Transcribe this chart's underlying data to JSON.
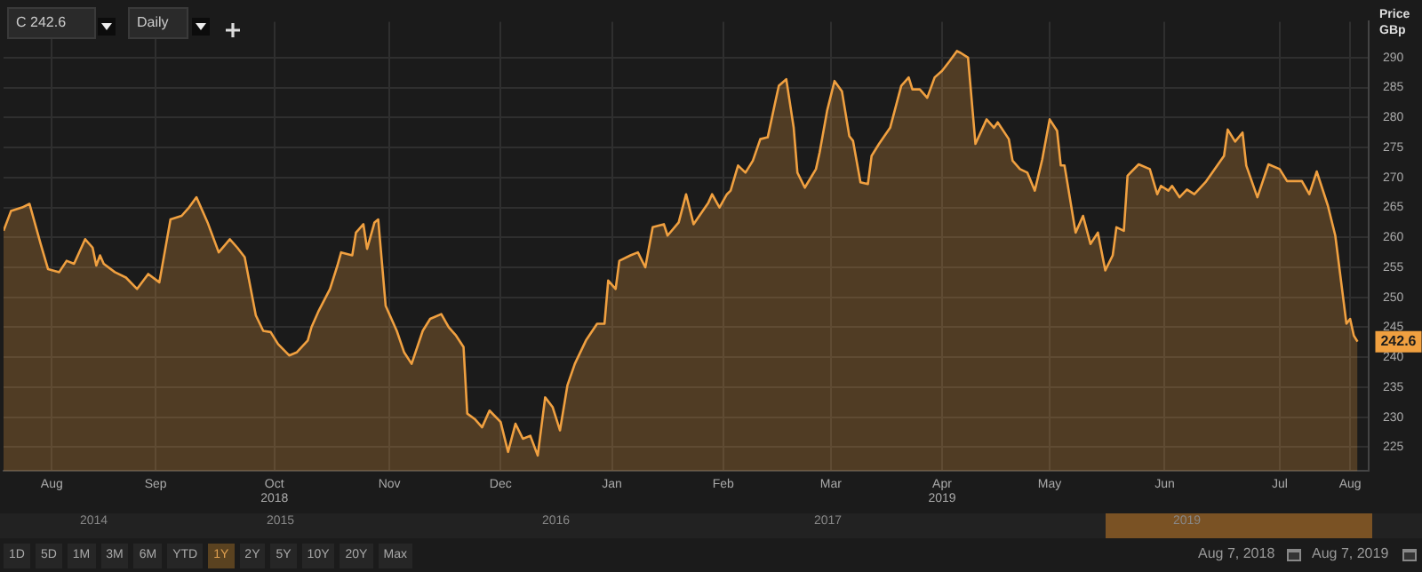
{
  "chart_data": {
    "type": "area",
    "ylabel": "Price GBp",
    "color": "#f0a040",
    "x": [
      "2018-08-07",
      "2018-08-09",
      "2018-08-12",
      "2018-08-14",
      "2018-08-17",
      "2018-08-19",
      "2018-08-22",
      "2018-08-24",
      "2018-08-26",
      "2018-08-29",
      "2018-08-31",
      "2018-09-01",
      "2018-09-02",
      "2018-09-03",
      "2018-09-06",
      "2018-09-09",
      "2018-09-12",
      "2018-09-15",
      "2018-09-18",
      "2018-09-21",
      "2018-09-24",
      "2018-09-26",
      "2018-09-28",
      "2018-10-01",
      "2018-10-04",
      "2018-10-07",
      "2018-10-09",
      "2018-10-11",
      "2018-10-14",
      "2018-10-16",
      "2018-10-18",
      "2018-10-20",
      "2018-10-23",
      "2018-10-25",
      "2018-10-28",
      "2018-10-29",
      "2018-10-31",
      "2018-11-03",
      "2018-11-05",
      "2018-11-06",
      "2018-11-09",
      "2018-11-10",
      "2018-11-12",
      "2018-11-13",
      "2018-11-15",
      "2018-11-16",
      "2018-11-18",
      "2018-11-21",
      "2018-11-23",
      "2018-11-25",
      "2018-11-28",
      "2018-11-30",
      "2018-12-03",
      "2018-12-05",
      "2018-12-07",
      "2018-12-09",
      "2018-12-10",
      "2018-12-12",
      "2018-12-14",
      "2018-12-16",
      "2018-12-19",
      "2018-12-21",
      "2018-12-23",
      "2018-12-25",
      "2018-12-27",
      "2018-12-29",
      "2018-12-31",
      "2019-01-02",
      "2019-01-04",
      "2019-01-06",
      "2019-01-08",
      "2019-01-11",
      "2019-01-14",
      "2019-01-16",
      "2019-01-17",
      "2019-01-19",
      "2019-01-20",
      "2019-01-23",
      "2019-01-25",
      "2019-01-27",
      "2019-01-29",
      "2019-02-01",
      "2019-02-02",
      "2019-02-05",
      "2019-02-07",
      "2019-02-09",
      "2019-02-13",
      "2019-02-14",
      "2019-02-16",
      "2019-02-18",
      "2019-02-19",
      "2019-02-21",
      "2019-02-23",
      "2019-02-25",
      "2019-02-27",
      "2019-03-01",
      "2019-03-03",
      "2019-03-04",
      "2019-03-06",
      "2019-03-08",
      "2019-03-09",
      "2019-03-11",
      "2019-03-14",
      "2019-03-15",
      "2019-03-17",
      "2019-03-19",
      "2019-03-21",
      "2019-03-23",
      "2019-03-24",
      "2019-03-26",
      "2019-03-28",
      "2019-03-29",
      "2019-03-31",
      "2019-04-03",
      "2019-04-06",
      "2019-04-08",
      "2019-04-09",
      "2019-04-11",
      "2019-04-13",
      "2019-04-15",
      "2019-04-17",
      "2019-04-19",
      "2019-04-21",
      "2019-04-22",
      "2019-04-24",
      "2019-04-26",
      "2019-04-29",
      "2019-05-01",
      "2019-05-02",
      "2019-05-05",
      "2019-05-06",
      "2019-05-08",
      "2019-05-10",
      "2019-05-12",
      "2019-05-14",
      "2019-05-16",
      "2019-05-18",
      "2019-05-19",
      "2019-05-20",
      "2019-05-23",
      "2019-05-25",
      "2019-05-27",
      "2019-05-29",
      "2019-05-31",
      "2019-06-02",
      "2019-06-03",
      "2019-06-05",
      "2019-06-06",
      "2019-06-09",
      "2019-06-12",
      "2019-06-14",
      "2019-06-15",
      "2019-06-17",
      "2019-06-18",
      "2019-06-20",
      "2019-06-22",
      "2019-06-24",
      "2019-06-27",
      "2019-07-02",
      "2019-07-03",
      "2019-07-05",
      "2019-07-07",
      "2019-07-08",
      "2019-07-11",
      "2019-07-14",
      "2019-07-17",
      "2019-07-19",
      "2019-07-23",
      "2019-07-25",
      "2019-07-27",
      "2019-07-30",
      "2019-08-01",
      "2019-08-03",
      "2019-08-04",
      "2019-08-05",
      "2019-08-06",
      "2019-08-07"
    ],
    "values": [
      261.1,
      264.4,
      265,
      265.6,
      258.9,
      254.7,
      254.2,
      256.1,
      255.6,
      259.7,
      258.3,
      255.3,
      257,
      255.6,
      254.2,
      253.3,
      251.4,
      253.9,
      252.5,
      263,
      263.6,
      265,
      266.7,
      262.5,
      257.5,
      259.7,
      258.3,
      256.7,
      247,
      244.4,
      244.2,
      242.2,
      240.3,
      240.8,
      242.8,
      245,
      247.8,
      251.4,
      255.3,
      257.5,
      257,
      260.8,
      262.2,
      258.1,
      262.5,
      263,
      248.6,
      244.4,
      240.8,
      238.9,
      244.4,
      246.4,
      247.2,
      245,
      243.6,
      241.7,
      230.6,
      229.7,
      228.3,
      231.1,
      229.2,
      224.2,
      228.9,
      226.4,
      226.9,
      223.6,
      233.3,
      231.7,
      227.8,
      235.3,
      238.9,
      242.8,
      245.6,
      245.6,
      252.8,
      251.4,
      256.1,
      257,
      257.5,
      255,
      261.7,
      262.2,
      260.3,
      262.5,
      267.2,
      262.2,
      265.8,
      267.2,
      265,
      267.2,
      267.8,
      272,
      270.8,
      272.8,
      276.4,
      276.7,
      282.5,
      285.3,
      286.4,
      278.3,
      270.8,
      268.3,
      271.4,
      274.2,
      281.1,
      286.1,
      284.4,
      276.9,
      276.1,
      269.2,
      268.9,
      273.6,
      275.6,
      278.3,
      285.3,
      286.7,
      284.7,
      284.7,
      283.3,
      286.7,
      287.8,
      289.4,
      291.1,
      290.8,
      290,
      275.6,
      279.7,
      278.3,
      279.2,
      276.4,
      272.8,
      271.4,
      270.8,
      267.8,
      273,
      279.7,
      277.8,
      272,
      272,
      260.8,
      263.6,
      258.9,
      260.8,
      254.5,
      257,
      261.7,
      261.1,
      270.3,
      272.2,
      271.4,
      267.2,
      268.6,
      267.8,
      268.6,
      266.7,
      268,
      267.2,
      269.2,
      273.6,
      278,
      276,
      277.5,
      272,
      266.7,
      272.2,
      271.4,
      269.4,
      269.4,
      267.2,
      271,
      265.3,
      260.3,
      250.5,
      245.6,
      246.4,
      243.6,
      242.6
    ],
    "xlim": [
      "2018-08-07",
      "2019-08-10"
    ],
    "xticks": [
      {
        "value": "2018-08-20",
        "label": "Aug"
      },
      {
        "value": "2018-09-17",
        "label": "Sep"
      },
      {
        "value": "2018-10-19",
        "label": "Oct\n2018"
      },
      {
        "value": "2018-11-19",
        "label": "Nov"
      },
      {
        "value": "2018-12-19",
        "label": "Dec"
      },
      {
        "value": "2019-01-18",
        "label": "Jan"
      },
      {
        "value": "2019-02-17",
        "label": "Feb"
      },
      {
        "value": "2019-03-18",
        "label": "Mar"
      },
      {
        "value": "2019-04-17",
        "label": "Apr\n2019"
      },
      {
        "value": "2019-05-16",
        "label": "May"
      },
      {
        "value": "2019-06-16",
        "label": "Jun"
      },
      {
        "value": "2019-07-17",
        "label": "Jul"
      },
      {
        "value": "2019-08-05",
        "label": "Aug"
      }
    ],
    "ylim": [
      221,
      296
    ],
    "yticks": [
      225,
      230,
      235,
      240,
      245,
      250,
      255,
      260,
      265,
      270,
      275,
      280,
      285,
      290
    ],
    "grid": true,
    "annotations": [
      "C 242.6",
      "Daily",
      "1D",
      "5D",
      "1M",
      "3M",
      "6M",
      "YTD",
      "1Y",
      "2Y",
      "5Y",
      "10Y",
      "20Y",
      "Max",
      "2014",
      "2015",
      "2016",
      "2017",
      "2019",
      "Aug 7, 2018",
      "Aug 7, 2019",
      {
        "text": "242.6",
        "x": "2019-08-07",
        "y": 242.6
      }
    ]
  }
}
